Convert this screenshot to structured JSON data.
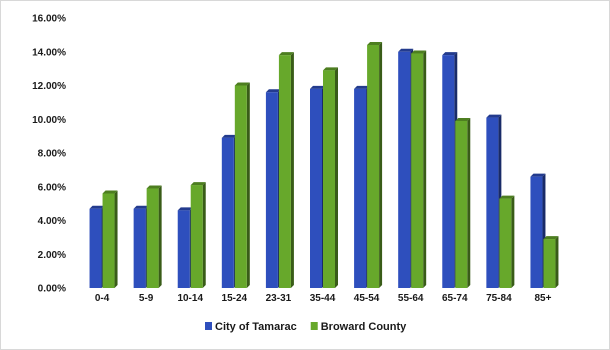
{
  "chart_data": {
    "type": "bar",
    "title": "",
    "xlabel": "",
    "ylabel": "",
    "categories": [
      "0-4",
      "5-9",
      "10-14",
      "15-24",
      "23-31",
      "35-44",
      "45-54",
      "55-64",
      "65-74",
      "75-84",
      "85+"
    ],
    "series": [
      {
        "name": "City of Tamarac",
        "color": "#2e4fbd",
        "values": [
          4.7,
          4.7,
          4.6,
          8.9,
          11.6,
          11.8,
          11.8,
          14.0,
          13.8,
          10.1,
          6.6
        ]
      },
      {
        "name": "Broward County",
        "color": "#67a82b",
        "values": [
          5.6,
          5.9,
          6.1,
          12.0,
          13.8,
          12.9,
          14.4,
          13.9,
          9.9,
          5.3,
          2.9
        ]
      }
    ],
    "ylim": [
      0,
      16
    ],
    "yticks": [
      0,
      2,
      4,
      6,
      8,
      10,
      12,
      14,
      16
    ],
    "yticklabels": [
      "0.00%",
      "2.00%",
      "4.00%",
      "6.00%",
      "8.00%",
      "10.00%",
      "12.00%",
      "14.00%",
      "16.00%"
    ],
    "grid": false,
    "legend_position": "bottom"
  }
}
